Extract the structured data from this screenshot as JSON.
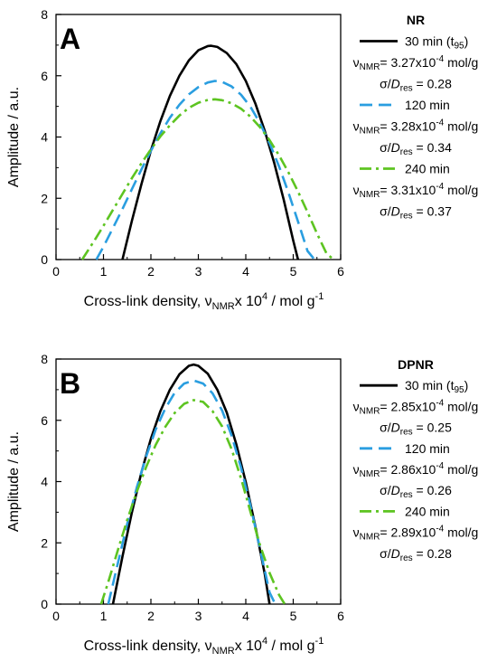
{
  "chart_data": [
    {
      "panel_label": "A",
      "type": "line",
      "xlabel": "Cross-link density, νNMRx 10⁴ / mol g⁻¹",
      "xlabel_parts": {
        "pre": "Cross-link density, ν",
        "sub": "NMR",
        "mid": "x 10",
        "sup1": "4",
        "post": " / mol g",
        "sup2": "-1"
      },
      "ylabel": "Amplitude / a.u.",
      "xlim": [
        0,
        6
      ],
      "ylim": [
        0,
        8
      ],
      "xticks": [
        "0",
        "1",
        "2",
        "3",
        "4",
        "5",
        "6"
      ],
      "yticks": [
        "0",
        "2",
        "4",
        "6",
        "8"
      ],
      "legend_title": "NR",
      "legend_placement": "right",
      "series": [
        {
          "name": "30 min (t95)",
          "name_main": "30 min (t",
          "name_sub": "95",
          "name_tail": ")",
          "color": "#000000",
          "dash": "solid",
          "nmr": "3.27x10",
          "nmr_exp": "-4",
          "nmr_unit": " mol/g",
          "sigma": "0.28",
          "x": [
            1.4,
            1.6,
            1.8,
            2.0,
            2.2,
            2.4,
            2.6,
            2.8,
            3.0,
            3.2,
            3.27,
            3.4,
            3.6,
            3.8,
            4.0,
            4.2,
            4.4,
            4.6,
            4.8,
            5.0,
            5.1
          ],
          "y": [
            0.0,
            1.27,
            2.46,
            3.56,
            4.52,
            5.34,
            6.0,
            6.5,
            6.83,
            6.97,
            6.98,
            6.94,
            6.74,
            6.38,
            5.83,
            5.1,
            4.2,
            3.15,
            1.95,
            0.62,
            0.0
          ]
        },
        {
          "name": "120 min",
          "color": "#2a9ee0",
          "dash": "dashed",
          "nmr": "3.28x10",
          "nmr_exp": "-4",
          "nmr_unit": " mol/g",
          "sigma": "0.34",
          "x": [
            0.85,
            1.0,
            1.2,
            1.4,
            1.6,
            1.8,
            2.0,
            2.2,
            2.4,
            2.6,
            2.8,
            3.0,
            3.2,
            3.35,
            3.5,
            3.7,
            3.9,
            4.1,
            4.3,
            4.5,
            4.7,
            4.9,
            5.1,
            5.3,
            5.45
          ],
          "y": [
            0.0,
            0.42,
            1.03,
            1.65,
            2.3,
            2.94,
            3.55,
            4.12,
            4.63,
            5.05,
            5.39,
            5.63,
            5.78,
            5.83,
            5.8,
            5.65,
            5.38,
            4.98,
            4.45,
            3.8,
            3.04,
            2.18,
            1.24,
            0.28,
            0.0
          ]
        },
        {
          "name": "240 min",
          "color": "#5dc421",
          "dash": "dashdot",
          "nmr": "3.31x10",
          "nmr_exp": "-4",
          "nmr_unit": " mol/g",
          "sigma": "0.37",
          "x": [
            0.55,
            0.8,
            1.0,
            1.2,
            1.4,
            1.6,
            1.8,
            2.0,
            2.2,
            2.4,
            2.6,
            2.8,
            3.0,
            3.2,
            3.35,
            3.5,
            3.7,
            3.9,
            4.1,
            4.3,
            4.5,
            4.7,
            4.9,
            5.1,
            5.3,
            5.5,
            5.7,
            5.85
          ],
          "y": [
            0.0,
            0.6,
            1.1,
            1.62,
            2.14,
            2.66,
            3.14,
            3.6,
            4.02,
            4.38,
            4.7,
            4.95,
            5.12,
            5.21,
            5.23,
            5.2,
            5.1,
            4.92,
            4.66,
            4.32,
            3.9,
            3.4,
            2.84,
            2.22,
            1.55,
            0.85,
            0.2,
            0.0
          ]
        }
      ]
    },
    {
      "panel_label": "B",
      "type": "line",
      "xlabel": "Cross-link density, νNMRx 10⁴ / mol g⁻¹",
      "xlabel_parts": {
        "pre": "Cross-link density, ν",
        "sub": "NMR",
        "mid": "x 10",
        "sup1": "4",
        "post": " / mol g",
        "sup2": "-1"
      },
      "ylabel": "Amplitude / a.u.",
      "xlim": [
        0,
        6
      ],
      "ylim": [
        0,
        8
      ],
      "xticks": [
        "0",
        "1",
        "2",
        "3",
        "4",
        "5",
        "6"
      ],
      "yticks": [
        "0",
        "2",
        "4",
        "6",
        "8"
      ],
      "legend_title": "DPNR",
      "legend_placement": "right",
      "series": [
        {
          "name": "30 min (t95)",
          "name_main": "30 min (t",
          "name_sub": "95",
          "name_tail": ")",
          "color": "#000000",
          "dash": "solid",
          "nmr": "2.85x10",
          "nmr_exp": "-4",
          "nmr_unit": " mol/g",
          "sigma": "0.25",
          "x": [
            1.2,
            1.4,
            1.6,
            1.8,
            2.0,
            2.2,
            2.4,
            2.6,
            2.8,
            2.9,
            3.0,
            3.2,
            3.4,
            3.6,
            3.8,
            4.0,
            4.2,
            4.4,
            4.5
          ],
          "y": [
            0.0,
            1.55,
            3.0,
            4.3,
            5.4,
            6.3,
            7.0,
            7.5,
            7.78,
            7.82,
            7.78,
            7.52,
            7.0,
            6.25,
            5.22,
            3.98,
            2.55,
            0.98,
            0.0
          ]
        },
        {
          "name": "120 min",
          "color": "#2a9ee0",
          "dash": "dashed",
          "nmr": "2.86x10",
          "nmr_exp": "-4",
          "nmr_unit": " mol/g",
          "sigma": "0.26",
          "x": [
            1.1,
            1.3,
            1.5,
            1.7,
            1.9,
            2.1,
            2.3,
            2.5,
            2.7,
            2.9,
            3.1,
            3.3,
            3.5,
            3.7,
            3.9,
            4.1,
            4.3,
            4.5,
            4.62
          ],
          "y": [
            0.0,
            1.32,
            2.62,
            3.8,
            4.82,
            5.7,
            6.38,
            6.9,
            7.2,
            7.3,
            7.2,
            6.88,
            6.32,
            5.5,
            4.45,
            3.2,
            1.8,
            0.38,
            0.0
          ]
        },
        {
          "name": "240 min",
          "color": "#5dc421",
          "dash": "dashdot",
          "nmr": "2.89x10",
          "nmr_exp": "-4",
          "nmr_unit": " mol/g",
          "sigma": "0.28",
          "x": [
            0.95,
            1.1,
            1.3,
            1.5,
            1.7,
            1.9,
            2.1,
            2.3,
            2.5,
            2.7,
            2.9,
            3.1,
            3.3,
            3.5,
            3.7,
            3.9,
            4.1,
            4.3,
            4.5,
            4.7,
            4.82
          ],
          "y": [
            0.0,
            0.72,
            1.75,
            2.75,
            3.66,
            4.48,
            5.2,
            5.78,
            6.24,
            6.54,
            6.66,
            6.6,
            6.3,
            5.8,
            5.06,
            4.1,
            3.0,
            1.92,
            1.02,
            0.3,
            0.0
          ]
        }
      ]
    }
  ],
  "legend_common": {
    "nu_symbol": "ν",
    "nu_sub": "NMR",
    "sigma_pre": "σ/",
    "sigma_D": "D",
    "sigma_sub": "res",
    "sigma_eq": " = "
  }
}
